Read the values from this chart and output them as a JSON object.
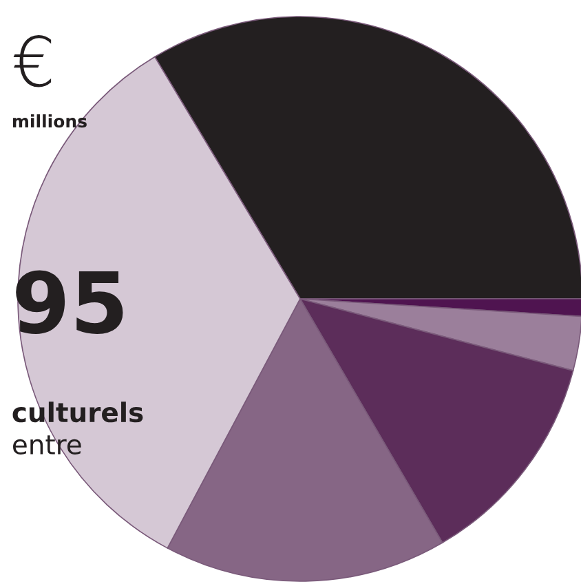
{
  "chart_data": {
    "type": "pie",
    "categories": [
      null,
      null,
      null,
      null,
      null,
      null
    ],
    "values": [
      33.6,
      1.0,
      3.1,
      12.5,
      16.2,
      33.6
    ],
    "colors": [
      "#231f20",
      "#4f1450",
      "#9b7f9b",
      "#5c2d5a",
      "#866685",
      "#d5c8d5"
    ],
    "annotations": [
      "€",
      "millions",
      "95",
      "culturels",
      "entre"
    ],
    "legend": false
  }
}
